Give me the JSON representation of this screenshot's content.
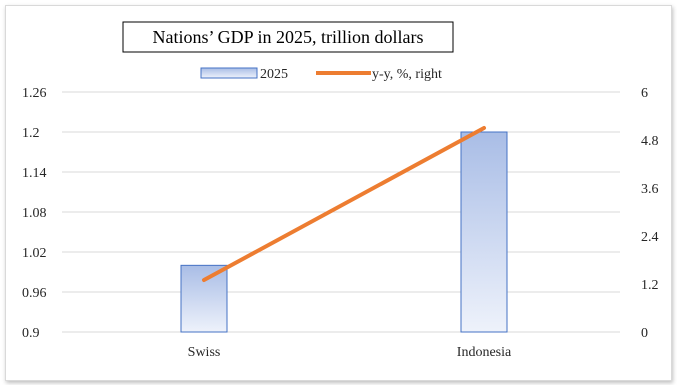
{
  "chart_data": {
    "type": "bar+line",
    "title": "Nations’ GDP in 2025, trillion dollars",
    "categories": [
      "Swiss",
      "Indonesia"
    ],
    "series": [
      {
        "name": "2025",
        "type": "bar",
        "axis": "left",
        "values": [
          1.0,
          1.2
        ]
      },
      {
        "name": "y-y, %, right",
        "type": "line",
        "axis": "right",
        "values": [
          1.3,
          5.1
        ]
      }
    ],
    "y_left": {
      "min": 0.9,
      "max": 1.26,
      "ticks": [
        "0.9",
        "0.96",
        "1.02",
        "1.08",
        "1.14",
        "1.2",
        "1.26"
      ]
    },
    "y_right": {
      "min": 0,
      "max": 6,
      "ticks": [
        "0",
        "1.2",
        "2.4",
        "3.6",
        "4.8",
        "6"
      ]
    },
    "grid": true,
    "legend_position": "top",
    "colors": {
      "bar_fill_top": "#a9bde6",
      "bar_fill_bottom": "#eef2fb",
      "bar_border": "#4472c4",
      "line": "#ed7d31",
      "grid": "#d9d9d9"
    }
  }
}
